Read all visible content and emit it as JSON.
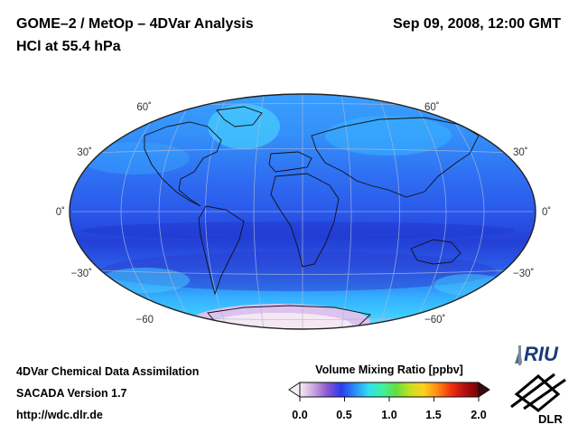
{
  "header": {
    "title_left": "GOME–2 / MetOp – 4DVar Analysis",
    "subtitle": "HCl at 55.4 hPa",
    "date": "Sep 09, 2008, 12:00 GMT"
  },
  "map": {
    "projection": "Hammer-Aitoff",
    "lat_labels_left": [
      "60˚",
      "30˚",
      "0˚",
      "−30˚",
      "−60"
    ],
    "lat_labels_right": [
      "60˚",
      "30˚",
      "0˚",
      "−30˚",
      "−60˚"
    ],
    "colors": {
      "background": "#2d62f0",
      "low_band": "#2342d8",
      "high": "#38b8ff",
      "polar": "#f0d8ea"
    }
  },
  "footer": {
    "line1": "4DVar Chemical Data Assimilation",
    "line2": "SACADA Version 1.7",
    "line3": "http://wdc.dlr.de"
  },
  "colorbar": {
    "title": "Volume Mixing Ratio [ppbv]",
    "ticks": [
      "0.0",
      "0.5",
      "1.0",
      "1.5",
      "2.0"
    ],
    "range": [
      0,
      2
    ],
    "colors": [
      "#f6eef6",
      "#c9a6dc",
      "#8a55d0",
      "#2b3cf0",
      "#2a8cf8",
      "#30e0f0",
      "#3ff0a0",
      "#60e040",
      "#c8e020",
      "#ffd020",
      "#ff8a10",
      "#f03010",
      "#b01010",
      "#7a0000"
    ]
  },
  "logos": {
    "riu": "RIU",
    "dlr": "DLR"
  }
}
